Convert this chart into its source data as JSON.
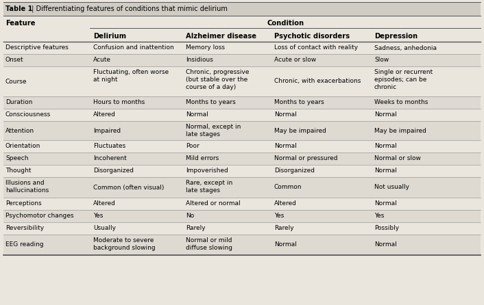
{
  "title_bold": "Table 1",
  "title_rest": " | Differentiating features of conditions that mimic delirium",
  "col_header_1": "Feature",
  "col_header_group": "Condition",
  "col_headers": [
    "Delirium",
    "Alzheimer disease",
    "Psychotic disorders",
    "Depression"
  ],
  "bg_color": "#eae6de",
  "title_bg": "#d0ccc4",
  "stripe_color": "#dedad2",
  "line_color": "#888888",
  "heavy_line_color": "#555555",
  "rows": [
    {
      "feature": "Descriptive features",
      "cells": [
        "Confusion and inattention",
        "Memory loss",
        "Loss of contact with reality",
        "Sadness, anhedonia"
      ],
      "shade": false
    },
    {
      "feature": "Onset",
      "cells": [
        "Acute",
        "Insidious",
        "Acute or slow",
        "Slow"
      ],
      "shade": true
    },
    {
      "feature": "Course",
      "cells": [
        "Fluctuating, often worse\nat night",
        "Chronic, progressive\n(but stable over the\ncourse of a day)",
        "Chronic, with exacerbations",
        "Single or recurrent\nepisodes; can be\nchronic"
      ],
      "shade": false
    },
    {
      "feature": "Duration",
      "cells": [
        "Hours to months",
        "Months to years",
        "Months to years",
        "Weeks to months"
      ],
      "shade": true
    },
    {
      "feature": "Consciousness",
      "cells": [
        "Altered",
        "Normal",
        "Normal",
        "Normal"
      ],
      "shade": false
    },
    {
      "feature": "Attention",
      "cells": [
        "Impaired",
        "Normal, except in\nlate stages",
        "May be impaired",
        "May be impaired"
      ],
      "shade": true
    },
    {
      "feature": "Orientation",
      "cells": [
        "Fluctuates",
        "Poor",
        "Normal",
        "Normal"
      ],
      "shade": false
    },
    {
      "feature": "Speech",
      "cells": [
        "Incoherent",
        "Mild errors",
        "Normal or pressured",
        "Normal or slow"
      ],
      "shade": true
    },
    {
      "feature": "Thought",
      "cells": [
        "Disorganized",
        "Impoverished",
        "Disorganized",
        "Normal"
      ],
      "shade": false
    },
    {
      "feature": "Illusions and\nhallucinations",
      "cells": [
        "Common (often visual)",
        "Rare, except in\nlate stages",
        "Common",
        "Not usually"
      ],
      "shade": true
    },
    {
      "feature": "Perceptions",
      "cells": [
        "Altered",
        "Altered or normal",
        "Altered",
        "Normal"
      ],
      "shade": false
    },
    {
      "feature": "Psychomotor changes",
      "cells": [
        "Yes",
        "No",
        "Yes",
        "Yes"
      ],
      "shade": true
    },
    {
      "feature": "Reversibility",
      "cells": [
        "Usually",
        "Rarely",
        "Rarely",
        "Possibly"
      ],
      "shade": false
    },
    {
      "feature": "EEG reading",
      "cells": [
        "Moderate to severe\nbackground slowing",
        "Normal or mild\ndiffuse slowing",
        "Normal",
        "Normal"
      ],
      "shade": true
    }
  ],
  "figsize": [
    7.06,
    4.46
  ],
  "dpi": 100
}
